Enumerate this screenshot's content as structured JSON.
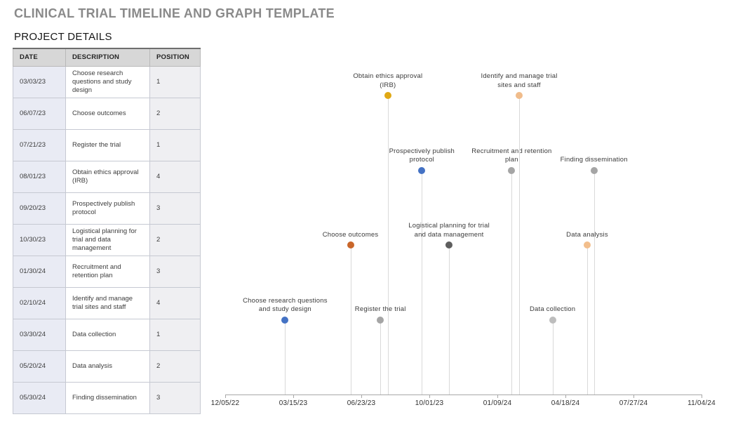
{
  "page": {
    "title": "CLINICAL TRIAL TIMELINE AND GRAPH TEMPLATE",
    "section_title": "PROJECT DETAILS"
  },
  "table": {
    "columns": [
      "DATE",
      "DESCRIPTION",
      "POSITION"
    ],
    "rows": [
      {
        "date": "03/03/23",
        "description": "Choose research questions and study design",
        "position": "1"
      },
      {
        "date": "06/07/23",
        "description": "Choose outcomes",
        "position": "2"
      },
      {
        "date": "07/21/23",
        "description": "Register the trial",
        "position": "1"
      },
      {
        "date": "08/01/23",
        "description": "Obtain ethics approval (IRB)",
        "position": "4"
      },
      {
        "date": "09/20/23",
        "description": "Prospectively publish protocol",
        "position": "3"
      },
      {
        "date": "10/30/23",
        "description": "Logistical planning for trial and data management",
        "position": "2"
      },
      {
        "date": "01/30/24",
        "description": "Recruitment and retention plan",
        "position": "3"
      },
      {
        "date": "02/10/24",
        "description": "Identify and manage trial sites and staff",
        "position": "4"
      },
      {
        "date": "03/30/24",
        "description": "Data collection",
        "position": "1"
      },
      {
        "date": "05/20/24",
        "description": "Data analysis",
        "position": "2"
      },
      {
        "date": "05/30/24",
        "description": "Finding dissemination",
        "position": "3"
      }
    ]
  },
  "chart_data": {
    "type": "scatter",
    "subtype": "lollipop-timeline",
    "legend": "none",
    "grid": "off",
    "stem_color": "#d9d9d9",
    "axis_color": "#a8a8a8",
    "x_axis": {
      "start": "12/05/22",
      "end": "11/04/24",
      "interval_days": 100,
      "tick_labels": [
        "12/05/22",
        "03/15/23",
        "06/23/23",
        "10/01/23",
        "01/09/24",
        "04/18/24",
        "07/27/24",
        "11/04/24"
      ]
    },
    "y_axis": {
      "values_are": "position",
      "range": [
        0,
        5
      ]
    },
    "milestones": [
      {
        "date": "03/03/23",
        "position": 1,
        "color": "#4472c4",
        "label": "Choose research questions and study design",
        "label_lines": [
          "Choose research questions",
          "and study design"
        ]
      },
      {
        "date": "06/07/23",
        "position": 2,
        "color": "#c9662a",
        "label": "Choose outcomes",
        "label_lines": [
          "Choose outcomes"
        ]
      },
      {
        "date": "07/21/23",
        "position": 1,
        "color": "#a5a5a5",
        "label": "Register the trial",
        "label_lines": [
          "Register the trial"
        ]
      },
      {
        "date": "08/01/23",
        "position": 4,
        "color": "#e0a814",
        "label": "Obtain ethics approval (IRB)",
        "label_lines": [
          "Obtain ethics approval",
          "(IRB)"
        ]
      },
      {
        "date": "09/20/23",
        "position": 3,
        "color": "#4472c4",
        "label": "Prospectively publish protocol",
        "label_lines": [
          "Prospectively publish",
          "protocol"
        ]
      },
      {
        "date": "10/30/23",
        "position": 2,
        "color": "#5e5e5e",
        "label": "Logistical planning for trial and data management",
        "label_lines": [
          "Logistical planning for trial",
          "and data management"
        ]
      },
      {
        "date": "01/30/24",
        "position": 3,
        "color": "#a5a5a5",
        "label": "Recruitment and retention plan",
        "label_lines": [
          "Recruitment and retention",
          "plan"
        ]
      },
      {
        "date": "02/10/24",
        "position": 4,
        "color": "#f0bc8b",
        "label": "Identify and manage trial sites and staff",
        "label_lines": [
          "Identify and manage trial",
          "sites and staff"
        ]
      },
      {
        "date": "03/30/24",
        "position": 1,
        "color": "#bdbdbd",
        "label": "Data collection",
        "label_lines": [
          "Data collection"
        ]
      },
      {
        "date": "05/20/24",
        "position": 2,
        "color": "#f2be8c",
        "label": "Data analysis",
        "label_lines": [
          "Data analysis"
        ]
      },
      {
        "date": "05/30/24",
        "position": 3,
        "color": "#a5a5a5",
        "label": "Finding dissemination",
        "label_lines": [
          "Finding dissemination"
        ]
      }
    ]
  }
}
